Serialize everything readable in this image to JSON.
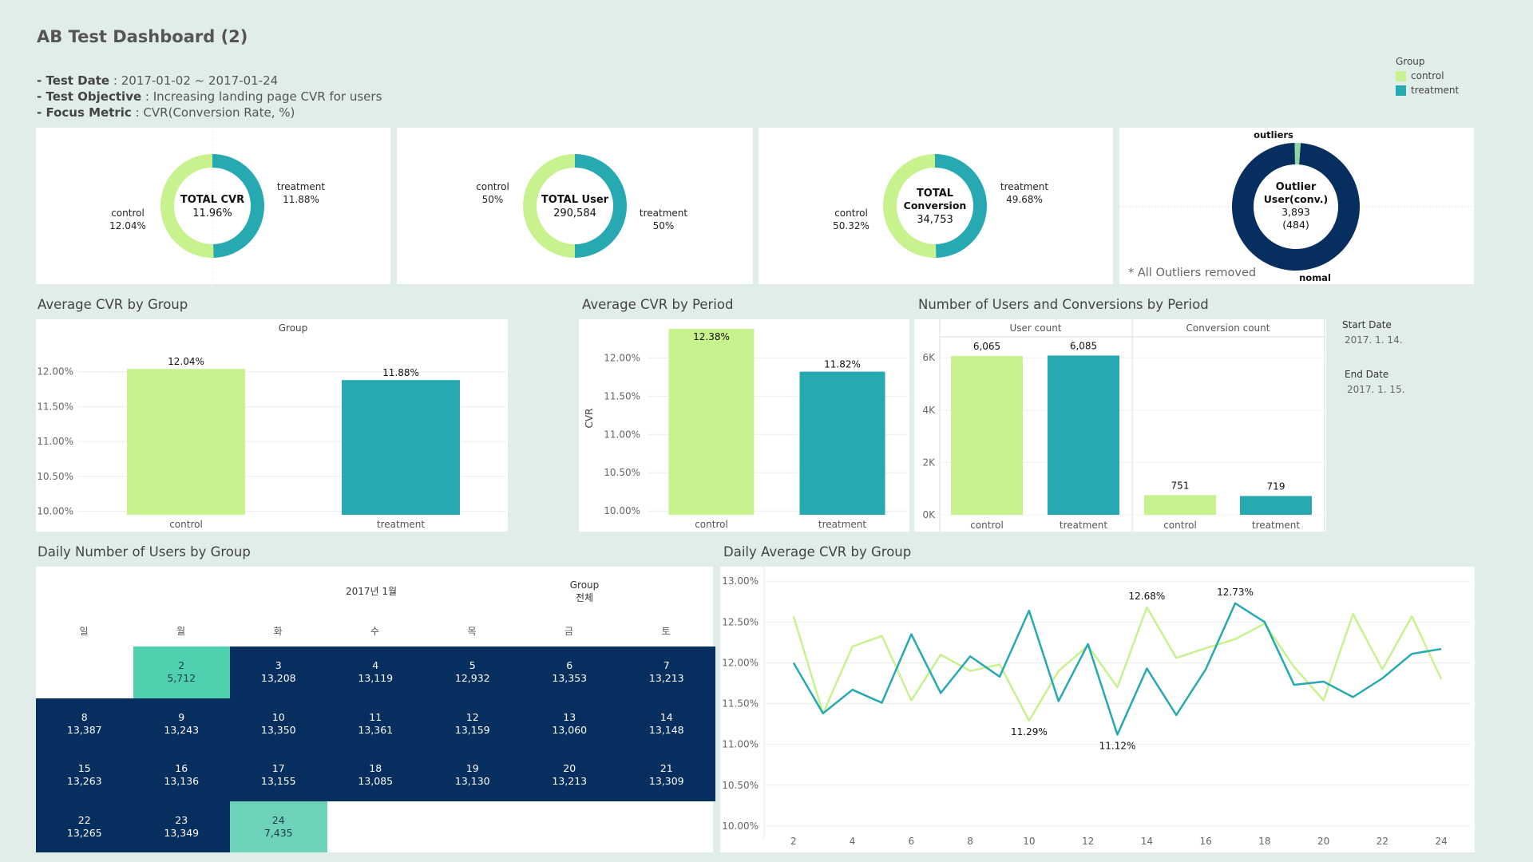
{
  "header": {
    "title": "AB Test Dashboard (2)",
    "test_date_label": "- Test Date",
    "test_date_value": ": 2017-01-02 ~ 2017-01-24",
    "objective_label": "- Test Objective",
    "objective_value": ": Increasing landing page CVR for users",
    "metric_label": "- Focus Metric",
    "metric_value": ": CVR(Conversion Rate, %)"
  },
  "legend": {
    "title": "Group",
    "items": [
      {
        "label": "control",
        "color": "#c8f28e"
      },
      {
        "label": "treatment",
        "color": "#27a9b1"
      }
    ]
  },
  "colors": {
    "control": "#c8f28e",
    "treatment": "#27a9b1",
    "navy": "#062e5e",
    "calendar_light": "#4fd1b0",
    "calendar_light2": "#6ed2bb"
  },
  "kpis": {
    "cvr": {
      "title": "TOTAL CVR",
      "value": "11.96%",
      "left_label": "control",
      "left_value": "12.04%",
      "right_label": "treatment",
      "right_value": "11.88%",
      "treatment_share": 0.4966
    },
    "users": {
      "title": "TOTAL User",
      "value": "290,584",
      "left_label": "control",
      "left_value": "50%",
      "right_label": "treatment",
      "right_value": "50%",
      "treatment_share": 0.5
    },
    "conversion": {
      "title_line1": "TOTAL",
      "title_line2": "Conversion",
      "value": "34,753",
      "left_label": "control",
      "left_value": "50.32%",
      "right_label": "treatment",
      "right_value": "49.68%",
      "treatment_share": 0.4968
    },
    "outlier": {
      "title_line1": "Outlier",
      "title_line2": "User(conv.)",
      "value": "3,893",
      "sub_value": "(484)",
      "top_label": "outliers",
      "bottom_label": "nomal",
      "note": "* All Outliers removed",
      "outlier_share": 0.012
    }
  },
  "sections": {
    "avg_cvr_group": "Average CVR by Group",
    "avg_cvr_period": "Average CVR by Period",
    "users_conv_period": "Number of Users and Conversions by Period",
    "daily_users": "Daily Number of Users by Group",
    "daily_cvr": "Daily Average CVR by Group"
  },
  "period": {
    "start_label": "Start Date",
    "start_value": "2017. 1. 14.",
    "end_label": "End Date",
    "end_value": "2017. 1. 15."
  },
  "chart_data": [
    {
      "type": "bar",
      "title": "Average CVR by Group",
      "header": "Group",
      "categories": [
        "control",
        "treatment"
      ],
      "values": [
        12.04,
        11.88
      ],
      "value_labels": [
        "12.04%",
        "11.88%"
      ],
      "ylim": [
        9.95,
        12.5
      ],
      "yticks": [
        10.0,
        10.5,
        11.0,
        11.5,
        12.0
      ],
      "ytick_labels": [
        "10.00%",
        "10.50%",
        "11.00%",
        "11.50%",
        "12.00%"
      ]
    },
    {
      "type": "bar",
      "title": "Average CVR by Period",
      "ylabel": "CVR",
      "categories": [
        "control",
        "treatment"
      ],
      "values": [
        12.38,
        11.82
      ],
      "value_labels": [
        "12.38%",
        "11.82%"
      ],
      "ylim": [
        9.95,
        12.4
      ],
      "yticks": [
        10.0,
        10.5,
        11.0,
        11.5,
        12.0
      ],
      "ytick_labels": [
        "10.00%",
        "10.50%",
        "11.00%",
        "11.50%",
        "12.00%"
      ]
    },
    {
      "type": "bar",
      "title": "Number of Users and Conversions by Period",
      "panels": [
        {
          "header": "User count",
          "categories": [
            "control",
            "treatment"
          ],
          "values": [
            6065,
            6085
          ],
          "value_labels": [
            "6,065",
            "6,085"
          ]
        },
        {
          "header": "Conversion count",
          "categories": [
            "control",
            "treatment"
          ],
          "values": [
            751,
            719
          ],
          "value_labels": [
            "751",
            "719"
          ]
        }
      ],
      "ylim": [
        0,
        6800
      ],
      "yticks": [
        0,
        2000,
        4000,
        6000
      ],
      "ytick_labels": [
        "0K",
        "2K",
        "4K",
        "6K"
      ]
    },
    {
      "type": "table",
      "title": "Daily Number of Users by Group",
      "month_label": "2017년 1월",
      "group_label": "Group",
      "group_value": "전체",
      "weekdays": [
        "일",
        "월",
        "화",
        "수",
        "목",
        "금",
        "토"
      ],
      "days": [
        {
          "day": "2",
          "users": "5,712"
        },
        {
          "day": "3",
          "users": "13,208"
        },
        {
          "day": "4",
          "users": "13,119"
        },
        {
          "day": "5",
          "users": "12,932"
        },
        {
          "day": "6",
          "users": "13,353"
        },
        {
          "day": "7",
          "users": "13,213"
        },
        {
          "day": "8",
          "users": "13,387"
        },
        {
          "day": "9",
          "users": "13,243"
        },
        {
          "day": "10",
          "users": "13,350"
        },
        {
          "day": "11",
          "users": "13,361"
        },
        {
          "day": "12",
          "users": "13,159"
        },
        {
          "day": "13",
          "users": "13,060"
        },
        {
          "day": "14",
          "users": "13,148"
        },
        {
          "day": "15",
          "users": "13,263"
        },
        {
          "day": "16",
          "users": "13,136"
        },
        {
          "day": "17",
          "users": "13,155"
        },
        {
          "day": "18",
          "users": "13,085"
        },
        {
          "day": "19",
          "users": "13,130"
        },
        {
          "day": "20",
          "users": "13,213"
        },
        {
          "day": "21",
          "users": "13,309"
        },
        {
          "day": "22",
          "users": "13,265"
        },
        {
          "day": "23",
          "users": "13,349"
        },
        {
          "day": "24",
          "users": "7,435"
        }
      ]
    },
    {
      "type": "line",
      "title": "Daily Average CVR by Group",
      "x": [
        2,
        3,
        4,
        5,
        6,
        7,
        8,
        9,
        10,
        11,
        12,
        13,
        14,
        15,
        16,
        17,
        18,
        19,
        20,
        21,
        22,
        23,
        24
      ],
      "series": [
        {
          "name": "control",
          "values": [
            12.57,
            11.38,
            12.2,
            12.33,
            11.54,
            12.1,
            11.9,
            11.98,
            11.29,
            11.9,
            12.21,
            11.7,
            12.68,
            12.06,
            12.18,
            12.29,
            12.48,
            11.95,
            11.54,
            12.6,
            11.92,
            12.57,
            11.8
          ]
        },
        {
          "name": "treatment",
          "values": [
            12.0,
            11.38,
            11.67,
            11.51,
            12.35,
            11.63,
            12.08,
            11.83,
            12.64,
            11.53,
            12.23,
            11.12,
            11.93,
            11.36,
            11.92,
            12.73,
            12.5,
            11.73,
            11.77,
            11.58,
            11.81,
            12.11,
            12.17
          ]
        }
      ],
      "annotations": [
        {
          "x": 10,
          "y": 11.29,
          "label": "11.29%",
          "pos": "below"
        },
        {
          "x": 13,
          "y": 11.12,
          "label": "11.12%",
          "pos": "below"
        },
        {
          "x": 14,
          "y": 12.68,
          "label": "12.68%",
          "pos": "above"
        },
        {
          "x": 17,
          "y": 12.73,
          "label": "12.73%",
          "pos": "above"
        }
      ],
      "ylim": [
        9.95,
        13.1
      ],
      "yticks": [
        10.0,
        10.5,
        11.0,
        11.5,
        12.0,
        12.5,
        13.0
      ],
      "ytick_labels": [
        "10.00%",
        "10.50%",
        "11.00%",
        "11.50%",
        "12.00%",
        "12.50%",
        "13.00%"
      ],
      "xticks": [
        2,
        4,
        6,
        8,
        10,
        12,
        14,
        16,
        18,
        20,
        22,
        24
      ],
      "xlim": [
        1,
        25
      ]
    }
  ]
}
